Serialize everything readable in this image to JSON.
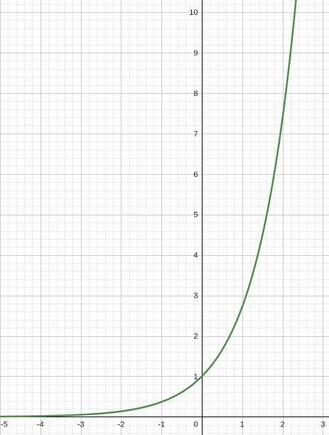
{
  "chart_data": {
    "type": "line",
    "title": "",
    "xlabel": "",
    "ylabel": "",
    "xlim": [
      -5,
      3.15
    ],
    "ylim": [
      -0.45,
      10.3
    ],
    "grid": true,
    "minor_grid_divisions": 5,
    "x_ticks": [
      {
        "value": -5,
        "label": "-5"
      },
      {
        "value": -4,
        "label": "-4"
      },
      {
        "value": -3,
        "label": "-3"
      },
      {
        "value": -2,
        "label": "-2"
      },
      {
        "value": -1,
        "label": "-1"
      },
      {
        "value": 0,
        "label": "0"
      },
      {
        "value": 1,
        "label": "1"
      },
      {
        "value": 2,
        "label": "2"
      },
      {
        "value": 3,
        "label": "3"
      }
    ],
    "y_ticks": [
      {
        "value": 1,
        "label": "1"
      },
      {
        "value": 2,
        "label": "2"
      },
      {
        "value": 3,
        "label": "3"
      },
      {
        "value": 4,
        "label": "4"
      },
      {
        "value": 5,
        "label": "5"
      },
      {
        "value": 6,
        "label": "6"
      },
      {
        "value": 7,
        "label": "7"
      },
      {
        "value": 8,
        "label": "8"
      },
      {
        "value": 9,
        "label": "9"
      },
      {
        "value": 10,
        "label": "10"
      }
    ],
    "series": [
      {
        "color": "#4e8c4f",
        "x": [
          -5,
          -4.5,
          -4,
          -3.5,
          -3,
          -2.5,
          -2,
          -1.5,
          -1,
          -0.5,
          0,
          0.25,
          0.5,
          0.75,
          1,
          1.25,
          1.5,
          1.75,
          2,
          2.1,
          2.2,
          2.3,
          2.33
        ],
        "y": [
          0.0067,
          0.0111,
          0.0183,
          0.0302,
          0.0498,
          0.0821,
          0.1353,
          0.2231,
          0.3679,
          0.6065,
          1.0,
          1.284,
          1.6487,
          2.117,
          2.7183,
          3.4903,
          4.4817,
          5.7546,
          7.3891,
          8.1662,
          9.025,
          9.9742,
          10.2779
        ]
      }
    ]
  }
}
